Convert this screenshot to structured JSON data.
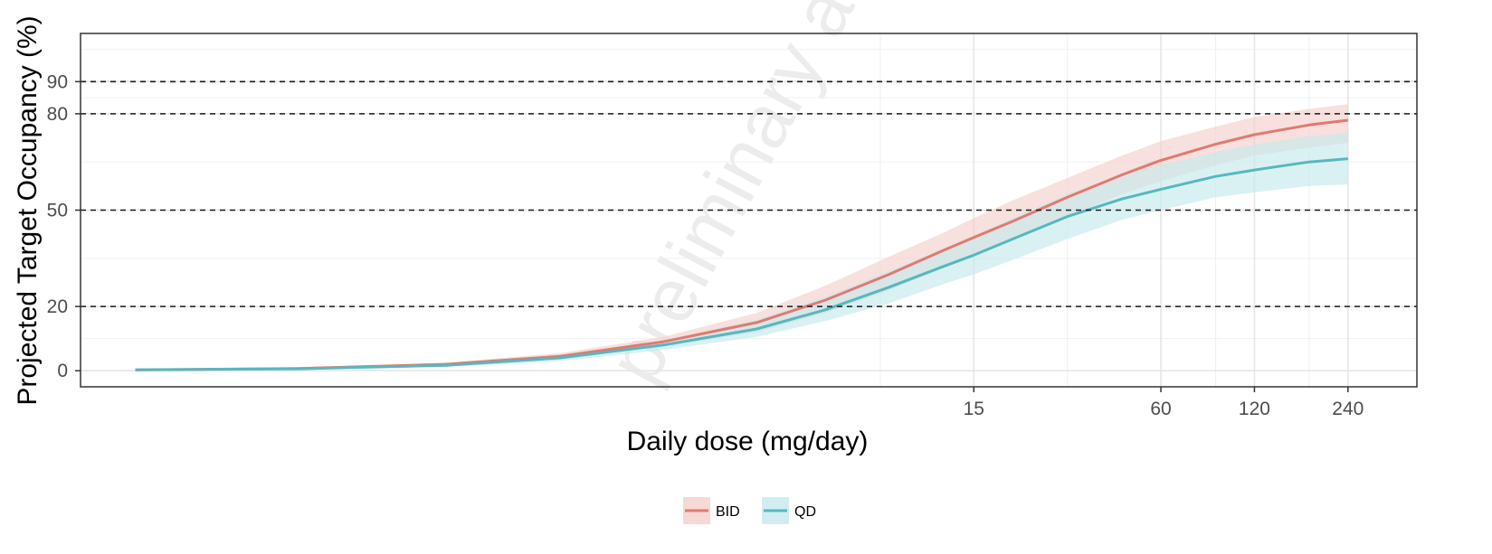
{
  "chart_data": {
    "type": "line",
    "title": "",
    "xlabel": "Daily dose (mg/day)",
    "ylabel": "Projected Target Occupancy (%)",
    "xscale": "log",
    "xlim": [
      0.02,
      400
    ],
    "ylim": [
      -5,
      105
    ],
    "xticks": [
      15,
      60,
      120,
      240
    ],
    "xtick_labels": [
      "15",
      "60",
      "120",
      "240"
    ],
    "yticks": [
      0,
      20,
      50,
      80,
      90
    ],
    "ytick_labels": [
      "0",
      "20",
      "50",
      "80",
      "90"
    ],
    "reference_lines_y": [
      20,
      50,
      80,
      90
    ],
    "grid": true,
    "legend_position": "bottom",
    "watermark": "preliminary analysis",
    "series": [
      {
        "name": "BID",
        "color": "#E07A70",
        "band_color": "#F3CFCB",
        "x": [
          0.03,
          0.1,
          0.3,
          0.7,
          1.5,
          3,
          5,
          8,
          12,
          15,
          20,
          30,
          45,
          60,
          90,
          120,
          180,
          240
        ],
        "y": [
          0.3,
          0.7,
          2,
          4.5,
          9,
          15,
          22,
          30,
          37.5,
          41.5,
          46.5,
          54,
          61,
          65.5,
          70.5,
          73.5,
          76.5,
          78
        ],
        "lower": [
          0.2,
          0.5,
          1.5,
          3.5,
          7.5,
          12,
          18,
          25,
          32,
          36,
          41,
          48,
          55,
          59,
          64,
          67,
          69.5,
          71
        ],
        "upper": [
          0.4,
          0.9,
          2.5,
          5.5,
          10.5,
          18,
          26.5,
          35.5,
          43,
          47.5,
          53,
          60,
          67,
          71.5,
          76,
          79,
          81.5,
          83
        ]
      },
      {
        "name": "QD",
        "color": "#56B8BE",
        "band_color": "#C6E9EC",
        "x": [
          0.03,
          0.1,
          0.3,
          0.7,
          1.5,
          3,
          5,
          8,
          12,
          15,
          20,
          30,
          45,
          60,
          90,
          120,
          180,
          240
        ],
        "y": [
          0.3,
          0.6,
          1.7,
          4,
          8,
          13,
          19,
          26,
          32.5,
          36,
          41,
          48,
          53.5,
          56.5,
          60.5,
          62.5,
          65,
          66
        ],
        "lower": [
          0.2,
          0.4,
          1.2,
          3,
          6.5,
          10.5,
          15.5,
          21,
          27,
          30,
          34.5,
          41,
          47,
          50,
          54,
          55.5,
          57.5,
          58
        ],
        "upper": [
          0.4,
          0.8,
          2.2,
          5,
          9.5,
          16,
          23,
          31,
          38,
          42,
          47.5,
          55,
          61,
          64,
          68,
          70.5,
          73,
          74
        ]
      }
    ]
  }
}
